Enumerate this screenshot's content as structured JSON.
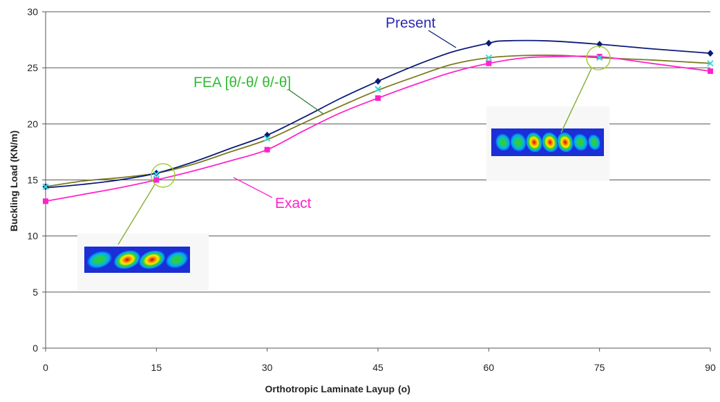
{
  "chart_data": {
    "type": "line",
    "xlabel": "Orthotropic Laminate Layup",
    "xlabel_unit": "(o)",
    "ylabel": "Buckling Load (KN/m)",
    "xlim": [
      0,
      90
    ],
    "ylim": [
      0,
      30
    ],
    "x_ticks": [
      "0",
      "15",
      "30",
      "45",
      "60",
      "75",
      "90"
    ],
    "y_ticks": [
      "0",
      "5",
      "10",
      "15",
      "20",
      "25",
      "30"
    ],
    "grid": "horizontal",
    "series": [
      {
        "name": "Present",
        "color": "#0a1a78",
        "marker": "diamond",
        "x": [
          0,
          15,
          30,
          45,
          60,
          75,
          90
        ],
        "values": [
          14.4,
          15.6,
          19.0,
          23.8,
          27.2,
          27.1,
          26.3
        ],
        "curve": [
          [
            0,
            14.3
          ],
          [
            5,
            14.6
          ],
          [
            10,
            15.0
          ],
          [
            15,
            15.6
          ],
          [
            20,
            16.6
          ],
          [
            25,
            17.8
          ],
          [
            30,
            19.0
          ],
          [
            35,
            20.6
          ],
          [
            40,
            22.3
          ],
          [
            45,
            23.8
          ],
          [
            50,
            25.2
          ],
          [
            55,
            26.4
          ],
          [
            60,
            27.2
          ],
          [
            62,
            27.4
          ],
          [
            68,
            27.4
          ],
          [
            75,
            27.1
          ],
          [
            82,
            26.7
          ],
          [
            90,
            26.3
          ]
        ]
      },
      {
        "name": "FEA [θ/-θ/ θ/-θ]",
        "color": "#7a7a1e",
        "marker": "x",
        "marker_color": "#33dddd",
        "x": [
          0,
          15,
          30,
          45,
          60,
          75,
          90
        ],
        "values": [
          14.4,
          15.5,
          18.7,
          23.1,
          25.9,
          25.9,
          25.4
        ],
        "curve": [
          [
            0,
            14.4
          ],
          [
            5,
            14.9
          ],
          [
            10,
            15.2
          ],
          [
            15,
            15.6
          ],
          [
            20,
            16.4
          ],
          [
            25,
            17.5
          ],
          [
            30,
            18.6
          ],
          [
            35,
            20.1
          ],
          [
            40,
            21.6
          ],
          [
            45,
            23.0
          ],
          [
            50,
            24.2
          ],
          [
            55,
            25.3
          ],
          [
            60,
            25.9
          ],
          [
            65,
            26.1
          ],
          [
            70,
            26.1
          ],
          [
            75,
            25.9
          ],
          [
            82,
            25.7
          ],
          [
            90,
            25.4
          ]
        ]
      },
      {
        "name": "Exact",
        "color": "#ff22cc",
        "marker": "square",
        "x": [
          0,
          15,
          30,
          45,
          60,
          75,
          90
        ],
        "values": [
          13.1,
          15.0,
          17.7,
          22.3,
          25.4,
          26.0,
          24.7
        ],
        "curve": [
          [
            0,
            13.1
          ],
          [
            5,
            13.7
          ],
          [
            10,
            14.3
          ],
          [
            15,
            15.0
          ],
          [
            20,
            15.8
          ],
          [
            25,
            16.7
          ],
          [
            30,
            17.7
          ],
          [
            35,
            19.4
          ],
          [
            40,
            21.0
          ],
          [
            45,
            22.3
          ],
          [
            50,
            23.5
          ],
          [
            55,
            24.6
          ],
          [
            60,
            25.4
          ],
          [
            65,
            25.9
          ],
          [
            70,
            26.0
          ],
          [
            75,
            26.0
          ],
          [
            82,
            25.4
          ],
          [
            90,
            24.7
          ]
        ]
      }
    ],
    "annotations": [
      {
        "text": "Present",
        "color": "#2a2ab0"
      },
      {
        "text": "FEA [θ/-θ/ θ/-θ]",
        "color": "#33bb33"
      },
      {
        "text": "Exact",
        "color": "#ff22cc"
      }
    ],
    "insets": [
      {
        "name": "mode-shape-15",
        "at_x": 15,
        "at_y": 15.5,
        "peaks": 2
      },
      {
        "name": "mode-shape-75",
        "at_x": 75,
        "at_y": 25.9,
        "peaks": 3
      }
    ]
  }
}
